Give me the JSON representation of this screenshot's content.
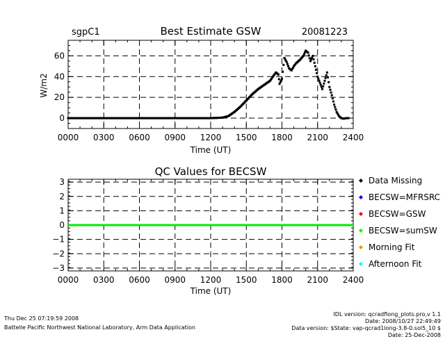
{
  "figure": {
    "site": "sgpC1",
    "date": "20081223"
  },
  "chart_data": [
    {
      "type": "scatter",
      "title": "Best Estimate GSW",
      "xlabel": "Time (UT)",
      "ylabel": "W/m2",
      "xlim": [
        0,
        2400
      ],
      "ylim": [
        -10,
        75
      ],
      "x_ticks": [
        "0000",
        "0300",
        "0600",
        "0900",
        "1200",
        "1500",
        "1800",
        "2100",
        "2400"
      ],
      "y_ticks": [
        "0",
        "20",
        "40",
        "60"
      ],
      "grid": true,
      "series": [
        {
          "color": "#000000",
          "x": [
            0,
            300,
            600,
            900,
            1200,
            1300,
            1350,
            1400,
            1450,
            1500,
            1550,
            1600,
            1650,
            1700,
            1730,
            1750,
            1770,
            1780,
            1800,
            1820,
            1840,
            1860,
            1880,
            1900,
            1920,
            1950,
            1980,
            2000,
            2020,
            2040,
            2060,
            2080,
            2100,
            2120,
            2140,
            2160,
            2180,
            2200,
            2220,
            2240,
            2260,
            2280,
            2300,
            2320,
            2340,
            2360
          ],
          "y": [
            0,
            0,
            0,
            0,
            0,
            0.5,
            2,
            6,
            11,
            17,
            23,
            28,
            32,
            36,
            41,
            44,
            42,
            33,
            38,
            58,
            54,
            48,
            46,
            50,
            53,
            56,
            60,
            65,
            63,
            55,
            60,
            50,
            40,
            34,
            28,
            36,
            44,
            30,
            22,
            13,
            6,
            2,
            0,
            -0.5,
            0,
            0
          ]
        }
      ]
    },
    {
      "type": "line",
      "title": "QC Values for BECSW",
      "xlabel": "Time (UT)",
      "ylabel": "",
      "xlim": [
        0,
        2400
      ],
      "ylim": [
        -3.2,
        3.2
      ],
      "x_ticks": [
        "0000",
        "0300",
        "0600",
        "0900",
        "1200",
        "1500",
        "1800",
        "2100",
        "2400"
      ],
      "y_ticks": [
        "3",
        "2",
        "1",
        "0",
        "−1",
        "−2",
        "−3"
      ],
      "grid": true,
      "series": [
        {
          "color": "#00ee00",
          "x": [
            0,
            2400
          ],
          "y": [
            0,
            0
          ]
        }
      ],
      "legend": [
        {
          "label": "Data Missing",
          "color": "#000000"
        },
        {
          "label": "BECSW=MFRSRC",
          "color": "#0000ff"
        },
        {
          "label": "BECSW=GSW",
          "color": "#ff0000"
        },
        {
          "label": "BECSW=sumSW",
          "color": "#00ff00"
        },
        {
          "label": "Morning Fit",
          "color": "#ff8c00"
        },
        {
          "label": "Afternoon Fit",
          "color": "#00ffff"
        }
      ]
    }
  ],
  "footer": {
    "date": "Thu Dec 25 07:19:59 2008",
    "lab": "Battelle Pacific Northwest National Laboratory, Arm Data Application",
    "idl": "IDL version: qcradflong_plots.pro,v 1.1",
    "idl_date": "Date: 2008/10/27 22:49:49",
    "data_version": "Data version: $State: vap-qcrad1long-3.8-0.sol5_10 $",
    "data_date": "Date: 25-Dec-2008"
  }
}
